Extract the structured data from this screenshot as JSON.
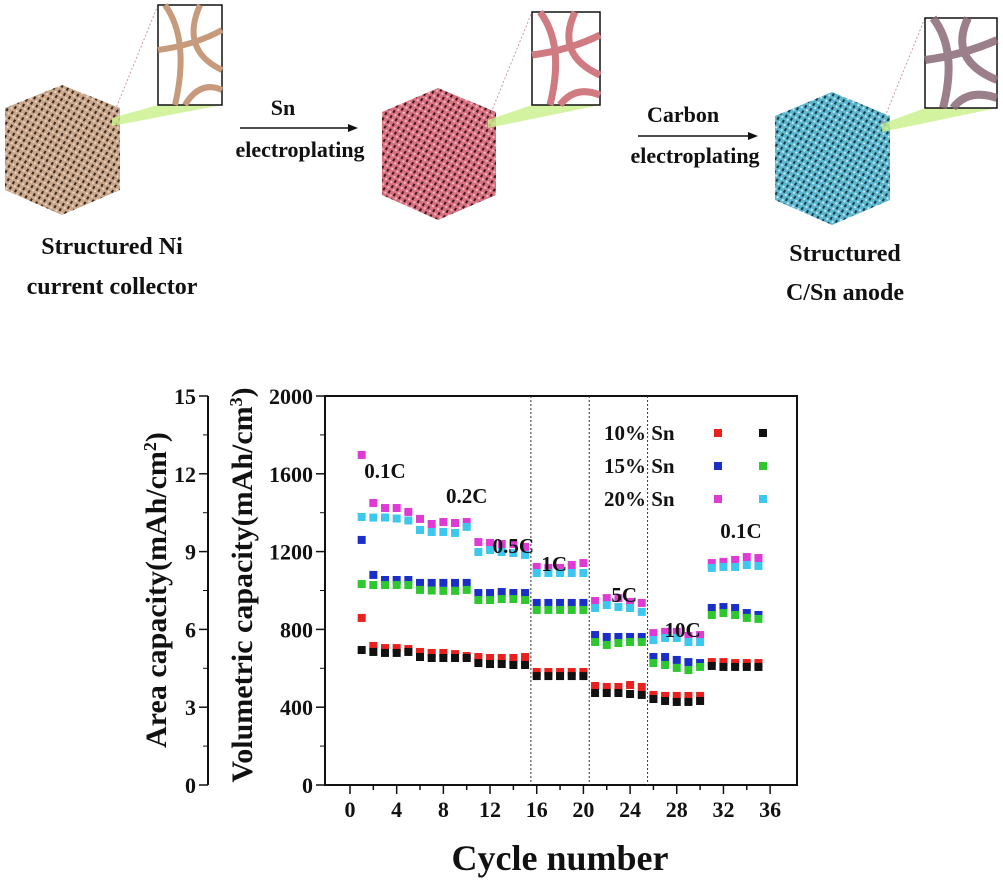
{
  "diagram": {
    "step1_label_line1": "Structured Ni",
    "step1_label_line2": "current collector",
    "arrow1_top": "Sn",
    "arrow1_bottom": "electroplating",
    "arrow2_top": "Carbon",
    "arrow2_bottom": "electroplating",
    "step3_label_line1": "Structured",
    "step3_label_line2": "C/Sn anode",
    "colors": {
      "ni": "#c9a68a",
      "sn": "#d9707f",
      "csn": "#5bb6cf"
    }
  },
  "chart_data": {
    "type": "scatter",
    "xlabel": "Cycle number",
    "ylabel_left": "Area capacity(mAh/cm2)",
    "ylabel_right": "Volumetric capacity(mAh/cm3)",
    "xlim": [
      -1,
      37
    ],
    "xticks": [
      0,
      4,
      8,
      12,
      16,
      20,
      24,
      28,
      32,
      36
    ],
    "ylim_area": [
      0,
      15
    ],
    "yticks_area": [
      0,
      3,
      6,
      9,
      12,
      15
    ],
    "ylim_vol": [
      0,
      2000
    ],
    "yticks_vol": [
      0,
      400,
      800,
      1200,
      1600,
      2000
    ],
    "rate_dividers": [
      15.5,
      20.5,
      25.5
    ],
    "rate_labels": [
      "0.1C",
      "0.2C",
      "0.5C",
      "1C",
      "5C",
      "10C",
      "0.1C"
    ],
    "legend": [
      {
        "label": "10% Sn",
        "area_color": "#e8201e",
        "vol_color": "#111111"
      },
      {
        "label": "15% Sn",
        "area_color": "#1a2fc8",
        "vol_color": "#2ec82e"
      },
      {
        "label": "20% Sn",
        "area_color": "#e03ad6",
        "vol_color": "#3cc8ee"
      }
    ],
    "x": [
      1,
      2,
      3,
      4,
      5,
      6,
      7,
      8,
      9,
      10,
      11,
      12,
      13,
      14,
      15,
      16,
      17,
      18,
      19,
      20,
      21,
      22,
      23,
      24,
      25,
      26,
      27,
      28,
      29,
      30,
      31,
      32,
      33,
      34,
      35
    ],
    "series": [
      {
        "color": "#e8201e",
        "values_vol_units": [
          859,
          715,
          704,
          704,
          699,
          684,
          679,
          679,
          673,
          663,
          658,
          653,
          653,
          653,
          658,
          581,
          581,
          581,
          581,
          581,
          509,
          504,
          504,
          514,
          504,
          463,
          458,
          458,
          458,
          458,
          632,
          632,
          627,
          627,
          627
        ]
      },
      {
        "color": "#111111",
        "values_vol_units": [
          694,
          684,
          679,
          679,
          684,
          658,
          653,
          653,
          653,
          653,
          627,
          622,
          622,
          617,
          617,
          560,
          560,
          560,
          560,
          560,
          473,
          473,
          473,
          468,
          463,
          442,
          432,
          427,
          427,
          432,
          612,
          607,
          607,
          607,
          607
        ]
      },
      {
        "color": "#1a2fc8",
        "values_vol_units": [
          1260,
          1080,
          1054,
          1054,
          1054,
          1039,
          1039,
          1039,
          1039,
          1039,
          987,
          987,
          992,
          987,
          987,
          936,
          936,
          936,
          936,
          936,
          771,
          761,
          761,
          761,
          761,
          658,
          658,
          643,
          632,
          627,
          910,
          915,
          910,
          884,
          874
        ]
      },
      {
        "color": "#2ec82e",
        "values_vol_units": [
          1033,
          1028,
          1028,
          1028,
          1028,
          1003,
          1000,
          998,
          998,
          1003,
          951,
          951,
          956,
          956,
          951,
          900,
          900,
          900,
          900,
          900,
          735,
          720,
          730,
          735,
          735,
          627,
          617,
          602,
          591,
          607,
          874,
          884,
          874,
          859,
          854
        ]
      },
      {
        "color": "#e03ad6",
        "values_vol_units": [
          1697,
          1450,
          1424,
          1424,
          1404,
          1368,
          1342,
          1352,
          1347,
          1352,
          1249,
          1244,
          1239,
          1239,
          1224,
          1121,
          1116,
          1116,
          1131,
          1141,
          946,
          961,
          961,
          941,
          936,
          781,
          787,
          787,
          766,
          771,
          1141,
          1147,
          1157,
          1172,
          1167
        ]
      },
      {
        "color": "#3cc8ee",
        "values_vol_units": [
          1378,
          1375,
          1375,
          1370,
          1360,
          1311,
          1301,
          1301,
          1296,
          1327,
          1198,
          1208,
          1198,
          1193,
          1183,
          1090,
          1090,
          1090,
          1090,
          1090,
          910,
          925,
          915,
          910,
          890,
          745,
          756,
          756,
          735,
          735,
          1116,
          1121,
          1121,
          1131,
          1126
        ]
      }
    ]
  }
}
